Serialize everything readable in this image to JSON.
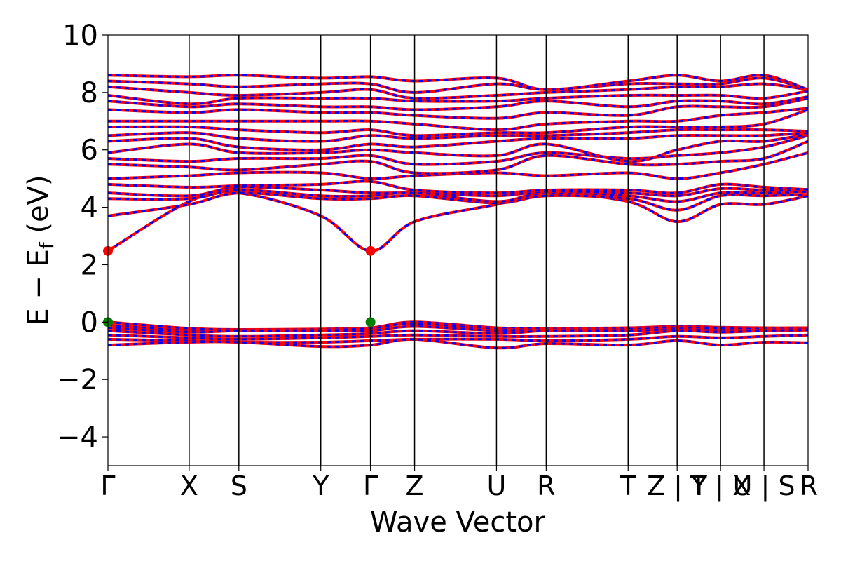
{
  "chart_data": {
    "type": "line",
    "title": "",
    "xlabel": "Wave Vector",
    "ylabel_main": "E − E",
    "ylabel_sub": "f",
    "ylabel_unit": " (eV)",
    "ylim": [
      -5,
      10
    ],
    "yticks": [
      10,
      8,
      6,
      4,
      2,
      0,
      -2,
      -4
    ],
    "ytick_labels": [
      "10",
      "8",
      "6",
      "4",
      "2",
      "0",
      "−2",
      "−4"
    ],
    "xlim": [
      0,
      1
    ],
    "kpoints": [
      {
        "label": "Γ",
        "x": 0.0
      },
      {
        "label": "X",
        "x": 0.116
      },
      {
        "label": "S",
        "x": 0.187
      },
      {
        "label": "Y",
        "x": 0.304
      },
      {
        "label": "Γ",
        "x": 0.375
      },
      {
        "label": "Z",
        "x": 0.438
      },
      {
        "label": "U",
        "x": 0.555
      },
      {
        "label": "R",
        "x": 0.626
      },
      {
        "label": "T",
        "x": 0.743
      },
      {
        "label": "Z | Y",
        "x": 0.813
      },
      {
        "label": "T | X",
        "x": 0.875
      },
      {
        "label": "U | S",
        "x": 0.937
      },
      {
        "label": "R",
        "x": 1.0
      }
    ],
    "series_colors": {
      "spin_up": "#ff0000",
      "spin_down": "#0000ff"
    },
    "cbm": [
      {
        "x": 0.0,
        "y": 2.48
      },
      {
        "x": 0.375,
        "y": 2.48
      }
    ],
    "vbm": [
      {
        "x": 0.0,
        "y": 0.0
      },
      {
        "x": 0.375,
        "y": 0.0
      }
    ],
    "cbm_color": "#ff0000",
    "vbm_color": "#008000",
    "bands": {
      "valence": [
        [
          0.0,
          -0.22,
          -0.26,
          -0.24,
          -0.2,
          0.0,
          -0.2,
          -0.22,
          -0.2,
          -0.15,
          -0.18,
          -0.2,
          -0.2
        ],
        [
          -0.1,
          -0.3,
          -0.28,
          -0.27,
          -0.22,
          -0.05,
          -0.25,
          -0.25,
          -0.22,
          -0.18,
          -0.2,
          -0.22,
          -0.21
        ],
        [
          -0.2,
          -0.35,
          -0.3,
          -0.3,
          -0.3,
          -0.15,
          -0.3,
          -0.28,
          -0.25,
          -0.2,
          -0.22,
          -0.25,
          -0.23
        ],
        [
          -0.3,
          -0.45,
          -0.5,
          -0.45,
          -0.4,
          -0.3,
          -0.4,
          -0.3,
          -0.3,
          -0.25,
          -0.3,
          -0.28,
          -0.25
        ],
        [
          -0.45,
          -0.55,
          -0.6,
          -0.55,
          -0.5,
          -0.45,
          -0.5,
          -0.5,
          -0.45,
          -0.3,
          -0.35,
          -0.3,
          -0.28
        ],
        [
          -0.6,
          -0.65,
          -0.7,
          -0.7,
          -0.65,
          -0.6,
          -0.6,
          -0.65,
          -0.6,
          -0.5,
          -0.55,
          -0.5,
          -0.45
        ],
        [
          -0.8,
          -0.7,
          -0.7,
          -0.85,
          -0.8,
          -0.6,
          -0.9,
          -0.75,
          -0.8,
          -0.65,
          -0.8,
          -0.7,
          -0.72
        ]
      ],
      "conduction": [
        [
          2.48,
          4.2,
          4.5,
          3.7,
          2.48,
          3.5,
          4.1,
          4.5,
          4.2,
          3.5,
          4.1,
          4.1,
          4.4
        ],
        [
          3.7,
          4.1,
          4.5,
          4.3,
          4.3,
          4.4,
          4.15,
          4.4,
          4.3,
          3.9,
          4.4,
          4.4,
          4.45
        ],
        [
          4.3,
          4.3,
          4.6,
          4.4,
          4.4,
          4.5,
          4.2,
          4.5,
          4.4,
          4.2,
          4.5,
          4.5,
          4.55
        ],
        [
          4.5,
          4.4,
          4.7,
          4.6,
          4.5,
          4.5,
          4.4,
          4.55,
          4.5,
          4.4,
          4.65,
          4.6,
          4.6
        ],
        [
          4.8,
          4.7,
          4.75,
          4.8,
          4.9,
          4.6,
          4.5,
          4.6,
          4.6,
          4.5,
          4.8,
          4.7,
          4.62
        ],
        [
          5.0,
          5.1,
          5.2,
          5.2,
          5.0,
          5.1,
          5.2,
          5.1,
          5.2,
          5.0,
          5.2,
          5.5,
          5.9
        ],
        [
          5.5,
          5.4,
          5.3,
          5.5,
          5.6,
          5.2,
          5.3,
          5.8,
          5.5,
          5.5,
          5.6,
          5.7,
          6.3
        ],
        [
          5.7,
          5.6,
          5.7,
          5.7,
          5.8,
          5.5,
          5.6,
          5.9,
          5.7,
          5.8,
          5.9,
          6.1,
          6.5
        ],
        [
          5.9,
          6.2,
          5.9,
          5.9,
          6.0,
          5.9,
          5.8,
          6.2,
          5.6,
          6.0,
          6.3,
          6.3,
          6.55
        ],
        [
          6.3,
          6.4,
          6.1,
          6.0,
          6.2,
          6.1,
          6.3,
          6.4,
          6.4,
          6.5,
          6.5,
          6.5,
          6.6
        ],
        [
          6.5,
          6.6,
          6.4,
          6.3,
          6.5,
          6.4,
          6.5,
          6.5,
          6.6,
          6.7,
          6.7,
          6.7,
          6.65
        ],
        [
          6.8,
          6.8,
          6.7,
          6.6,
          6.7,
          6.5,
          6.6,
          6.6,
          6.8,
          6.8,
          6.8,
          6.9,
          7.4
        ],
        [
          7.0,
          7.0,
          7.0,
          7.0,
          7.0,
          6.9,
          6.7,
          6.9,
          7.0,
          7.0,
          7.2,
          7.3,
          7.45
        ],
        [
          7.4,
          7.3,
          7.4,
          7.3,
          7.3,
          7.2,
          7.1,
          7.3,
          7.2,
          7.5,
          7.5,
          7.5,
          7.8
        ],
        [
          7.7,
          7.5,
          7.6,
          7.5,
          7.5,
          7.4,
          7.5,
          7.7,
          7.5,
          7.7,
          7.7,
          7.6,
          7.85
        ],
        [
          7.9,
          7.6,
          7.8,
          7.8,
          7.8,
          7.7,
          7.7,
          7.8,
          7.9,
          7.9,
          7.9,
          7.8,
          8.05
        ],
        [
          8.2,
          8.0,
          7.9,
          8.0,
          8.1,
          7.8,
          7.9,
          8.0,
          8.1,
          8.2,
          8.2,
          8.3,
          8.1
        ],
        [
          8.4,
          8.3,
          8.2,
          8.3,
          8.3,
          8.0,
          8.3,
          8.1,
          8.3,
          8.3,
          8.3,
          8.5,
          8.1
        ],
        [
          8.6,
          8.55,
          8.6,
          8.5,
          8.55,
          8.4,
          8.5,
          8.1,
          8.4,
          8.6,
          8.4,
          8.6,
          8.1
        ]
      ]
    }
  }
}
